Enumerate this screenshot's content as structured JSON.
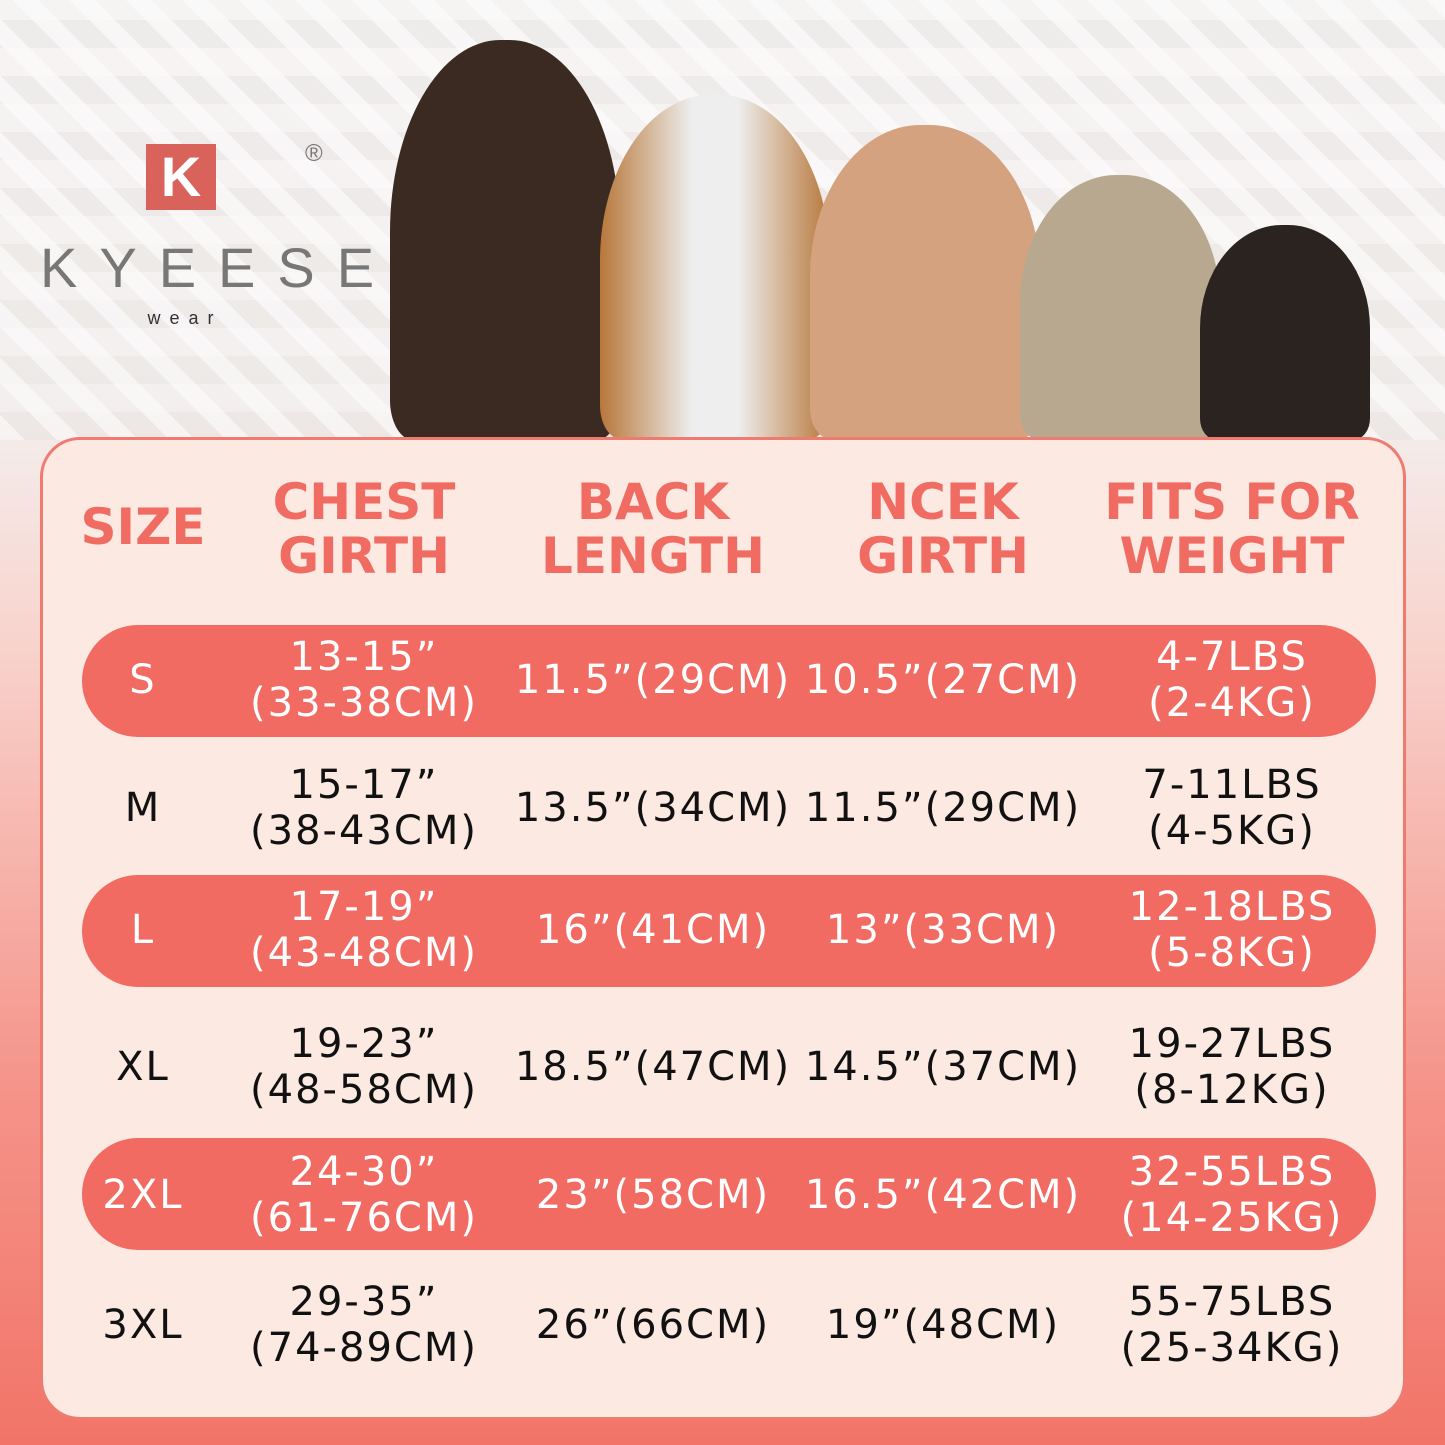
{
  "brand": {
    "logo_letter": "K",
    "registered": "®",
    "name": "KYEESE",
    "sub": "wear"
  },
  "colors": {
    "accent": "#f26b63",
    "panel": "#fbe9e2"
  },
  "headers": [
    [
      "SIZE"
    ],
    [
      "CHEST",
      "GIRTH"
    ],
    [
      "BACK",
      "LENGTH"
    ],
    [
      "NCEK",
      "GIRTH"
    ],
    [
      "FITS FOR",
      "WEIGHT"
    ]
  ],
  "rows": [
    {
      "size": "S",
      "chest": [
        "13-15”",
        "(33-38CM)"
      ],
      "back": "11.5”(29CM)",
      "neck": "10.5”(27CM)",
      "weight": [
        "4-7LBS",
        "(2-4KG)"
      ]
    },
    {
      "size": "M",
      "chest": [
        "15-17”",
        "(38-43CM)"
      ],
      "back": "13.5”(34CM)",
      "neck": "11.5”(29CM)",
      "weight": [
        "7-11LBS",
        "(4-5KG)"
      ]
    },
    {
      "size": "L",
      "chest": [
        "17-19”",
        "(43-48CM)"
      ],
      "back": "16”(41CM)",
      "neck": "13”(33CM)",
      "weight": [
        "12-18LBS",
        "(5-8KG)"
      ]
    },
    {
      "size": "XL",
      "chest": [
        "19-23”",
        "(48-58CM)"
      ],
      "back": "18.5”(47CM)",
      "neck": "14.5”(37CM)",
      "weight": [
        "19-27LBS",
        "(8-12KG)"
      ]
    },
    {
      "size": "2XL",
      "chest": [
        "24-30”",
        "(61-76CM)"
      ],
      "back": "23”(58CM)",
      "neck": "16.5”(42CM)",
      "weight": [
        "32-55LBS",
        "(14-25KG)"
      ]
    },
    {
      "size": "3XL",
      "chest": [
        "29-35”",
        "(74-89CM)"
      ],
      "back": "26”(66CM)",
      "neck": "19”(48CM)",
      "weight": [
        "55-75LBS",
        "(25-34KG)"
      ]
    }
  ]
}
